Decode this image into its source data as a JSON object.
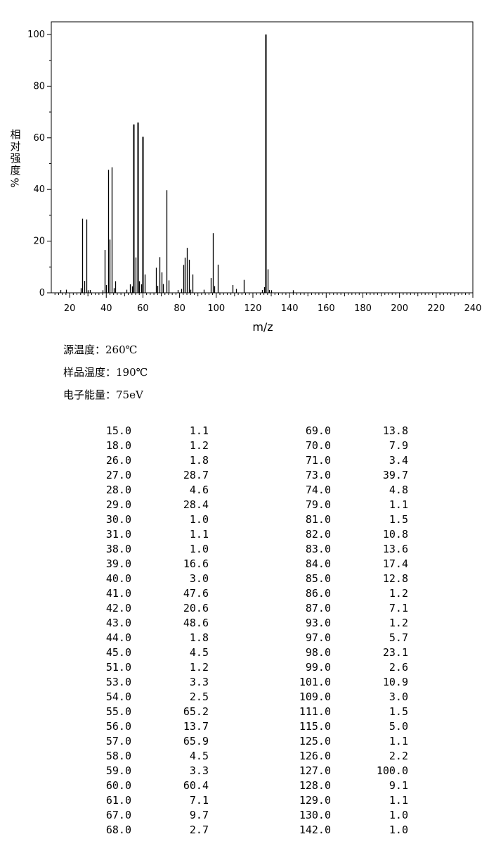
{
  "chart_data": {
    "type": "bar",
    "xlabel": "m/z",
    "ylabel": "相对强度%",
    "xlim": [
      10,
      240
    ],
    "ylim": [
      0,
      100
    ],
    "x_ticks": [
      20,
      40,
      60,
      80,
      100,
      120,
      140,
      160,
      180,
      200,
      220,
      240
    ],
    "y_ticks": [
      0,
      20,
      40,
      60,
      80,
      100
    ],
    "grid": false,
    "peaks": [
      {
        "mz": 15.0,
        "intensity": 1.1
      },
      {
        "mz": 18.0,
        "intensity": 1.2
      },
      {
        "mz": 26.0,
        "intensity": 1.8
      },
      {
        "mz": 27.0,
        "intensity": 28.7
      },
      {
        "mz": 28.0,
        "intensity": 4.6
      },
      {
        "mz": 29.0,
        "intensity": 28.4
      },
      {
        "mz": 30.0,
        "intensity": 1.0
      },
      {
        "mz": 31.0,
        "intensity": 1.1
      },
      {
        "mz": 38.0,
        "intensity": 1.0
      },
      {
        "mz": 39.0,
        "intensity": 16.6
      },
      {
        "mz": 40.0,
        "intensity": 3.0
      },
      {
        "mz": 41.0,
        "intensity": 47.6
      },
      {
        "mz": 42.0,
        "intensity": 20.6
      },
      {
        "mz": 43.0,
        "intensity": 48.6
      },
      {
        "mz": 44.0,
        "intensity": 1.8
      },
      {
        "mz": 45.0,
        "intensity": 4.5
      },
      {
        "mz": 51.0,
        "intensity": 1.2
      },
      {
        "mz": 53.0,
        "intensity": 3.3
      },
      {
        "mz": 54.0,
        "intensity": 2.5
      },
      {
        "mz": 55.0,
        "intensity": 65.2
      },
      {
        "mz": 56.0,
        "intensity": 13.7
      },
      {
        "mz": 57.0,
        "intensity": 65.9
      },
      {
        "mz": 58.0,
        "intensity": 4.5
      },
      {
        "mz": 59.0,
        "intensity": 3.3
      },
      {
        "mz": 60.0,
        "intensity": 60.4
      },
      {
        "mz": 61.0,
        "intensity": 7.1
      },
      {
        "mz": 67.0,
        "intensity": 9.7
      },
      {
        "mz": 68.0,
        "intensity": 2.7
      },
      {
        "mz": 69.0,
        "intensity": 13.8
      },
      {
        "mz": 70.0,
        "intensity": 7.9
      },
      {
        "mz": 71.0,
        "intensity": 3.4
      },
      {
        "mz": 73.0,
        "intensity": 39.7
      },
      {
        "mz": 74.0,
        "intensity": 4.8
      },
      {
        "mz": 79.0,
        "intensity": 1.1
      },
      {
        "mz": 81.0,
        "intensity": 1.5
      },
      {
        "mz": 82.0,
        "intensity": 10.8
      },
      {
        "mz": 83.0,
        "intensity": 13.6
      },
      {
        "mz": 84.0,
        "intensity": 17.4
      },
      {
        "mz": 85.0,
        "intensity": 12.8
      },
      {
        "mz": 86.0,
        "intensity": 1.2
      },
      {
        "mz": 87.0,
        "intensity": 7.1
      },
      {
        "mz": 93.0,
        "intensity": 1.2
      },
      {
        "mz": 97.0,
        "intensity": 5.7
      },
      {
        "mz": 98.0,
        "intensity": 23.1
      },
      {
        "mz": 99.0,
        "intensity": 2.6
      },
      {
        "mz": 101.0,
        "intensity": 10.9
      },
      {
        "mz": 109.0,
        "intensity": 3.0
      },
      {
        "mz": 111.0,
        "intensity": 1.5
      },
      {
        "mz": 115.0,
        "intensity": 5.0
      },
      {
        "mz": 125.0,
        "intensity": 1.1
      },
      {
        "mz": 126.0,
        "intensity": 2.2
      },
      {
        "mz": 127.0,
        "intensity": 100.0
      },
      {
        "mz": 128.0,
        "intensity": 9.1
      },
      {
        "mz": 129.0,
        "intensity": 1.1
      },
      {
        "mz": 130.0,
        "intensity": 1.0
      },
      {
        "mz": 142.0,
        "intensity": 1.0
      }
    ]
  },
  "conditions": {
    "source_temp": "源温度：260℃",
    "sample_temp": "样品温度：190℃",
    "electron_energy": "电子能量：75eV"
  },
  "table": {
    "rows": [
      [
        "15.0",
        "1.1",
        "69.0",
        "13.8"
      ],
      [
        "18.0",
        "1.2",
        "70.0",
        "7.9"
      ],
      [
        "26.0",
        "1.8",
        "71.0",
        "3.4"
      ],
      [
        "27.0",
        "28.7",
        "73.0",
        "39.7"
      ],
      [
        "28.0",
        "4.6",
        "74.0",
        "4.8"
      ],
      [
        "29.0",
        "28.4",
        "79.0",
        "1.1"
      ],
      [
        "30.0",
        "1.0",
        "81.0",
        "1.5"
      ],
      [
        "31.0",
        "1.1",
        "82.0",
        "10.8"
      ],
      [
        "38.0",
        "1.0",
        "83.0",
        "13.6"
      ],
      [
        "39.0",
        "16.6",
        "84.0",
        "17.4"
      ],
      [
        "40.0",
        "3.0",
        "85.0",
        "12.8"
      ],
      [
        "41.0",
        "47.6",
        "86.0",
        "1.2"
      ],
      [
        "42.0",
        "20.6",
        "87.0",
        "7.1"
      ],
      [
        "43.0",
        "48.6",
        "93.0",
        "1.2"
      ],
      [
        "44.0",
        "1.8",
        "97.0",
        "5.7"
      ],
      [
        "45.0",
        "4.5",
        "98.0",
        "23.1"
      ],
      [
        "51.0",
        "1.2",
        "99.0",
        "2.6"
      ],
      [
        "53.0",
        "3.3",
        "101.0",
        "10.9"
      ],
      [
        "54.0",
        "2.5",
        "109.0",
        "3.0"
      ],
      [
        "55.0",
        "65.2",
        "111.0",
        "1.5"
      ],
      [
        "56.0",
        "13.7",
        "115.0",
        "5.0"
      ],
      [
        "57.0",
        "65.9",
        "125.0",
        "1.1"
      ],
      [
        "58.0",
        "4.5",
        "126.0",
        "2.2"
      ],
      [
        "59.0",
        "3.3",
        "127.0",
        "100.0"
      ],
      [
        "60.0",
        "60.4",
        "128.0",
        "9.1"
      ],
      [
        "61.0",
        "7.1",
        "129.0",
        "1.1"
      ],
      [
        "67.0",
        "9.7",
        "130.0",
        "1.0"
      ],
      [
        "68.0",
        "2.7",
        "142.0",
        "1.0"
      ]
    ]
  }
}
